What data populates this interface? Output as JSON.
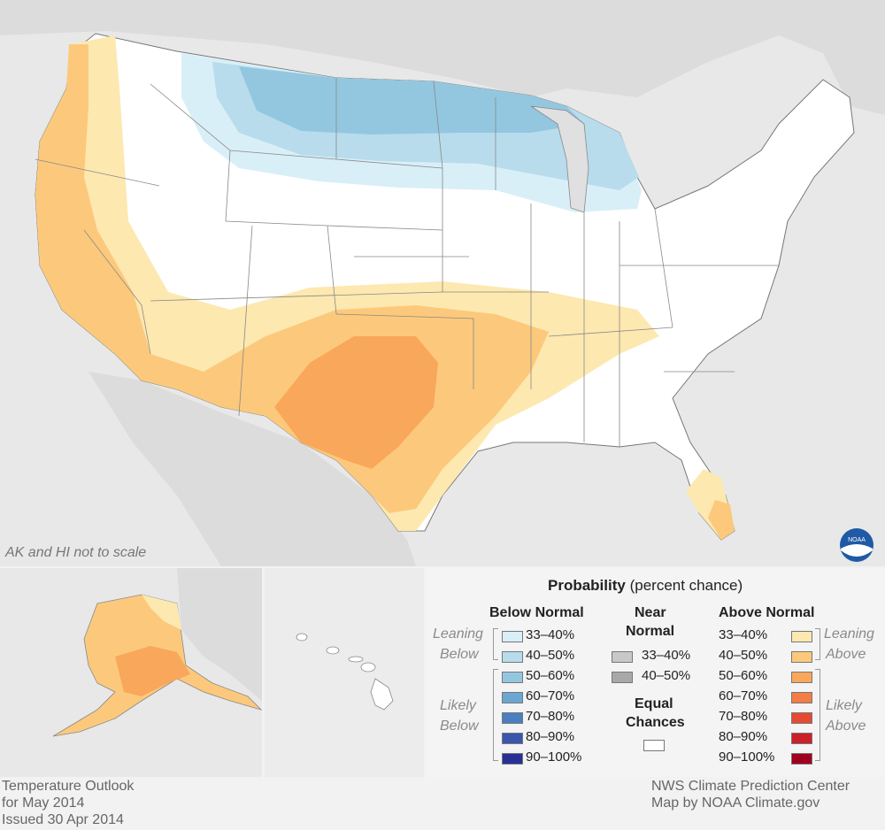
{
  "map": {
    "note": "AK and HI not to scale",
    "logo_text": "NOAA"
  },
  "legend": {
    "title": "Probability",
    "title_suffix": "(percent chance)",
    "below_header": "Below Normal",
    "near_header_1": "Near",
    "near_header_2": "Normal",
    "above_header": "Above Normal",
    "leaning_below_1": "Leaning",
    "leaning_below_2": "Below",
    "likely_below_1": "Likely",
    "likely_below_2": "Below",
    "leaning_above_1": "Leaning",
    "leaning_above_2": "Above",
    "likely_above_1": "Likely",
    "likely_above_2": "Above",
    "equal_1": "Equal",
    "equal_2": "Chances",
    "below": [
      {
        "label": "33–40%",
        "color": "#d9eff7"
      },
      {
        "label": "40–50%",
        "color": "#b8dcec"
      },
      {
        "label": "50–60%",
        "color": "#93c7e0"
      },
      {
        "label": "60–70%",
        "color": "#6ba7d1"
      },
      {
        "label": "70–80%",
        "color": "#4a7fc0"
      },
      {
        "label": "80–90%",
        "color": "#3a56ad"
      },
      {
        "label": "90–100%",
        "color": "#273095"
      }
    ],
    "near": [
      {
        "label": "33–40%",
        "color": "#c8c8c8"
      },
      {
        "label": "40–50%",
        "color": "#a8a8a8"
      }
    ],
    "above": [
      {
        "label": "33–40%",
        "color": "#fde8b0"
      },
      {
        "label": "40–50%",
        "color": "#fcc97c"
      },
      {
        "label": "50–60%",
        "color": "#f9a75a"
      },
      {
        "label": "60–70%",
        "color": "#f47c45"
      },
      {
        "label": "70–80%",
        "color": "#e54a33"
      },
      {
        "label": "80–90%",
        "color": "#cc2128"
      },
      {
        "label": "90–100%",
        "color": "#a0001e"
      }
    ],
    "equal_color": "#ffffff"
  },
  "footer": {
    "line1": "Temperature Outlook",
    "line2": "for May 2014",
    "line3": "Issued 30 Apr 2014",
    "credit1": "NWS Climate Prediction Center",
    "credit2": "Map by NOAA Climate.gov"
  }
}
